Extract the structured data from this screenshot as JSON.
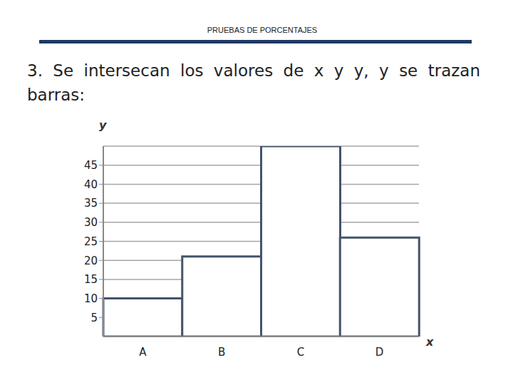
{
  "header": {
    "title": "PRUEBAS DE PORCENTAJES"
  },
  "question": "3. Se intersecan los valores de x y y, y se trazan barras:",
  "chart_data": {
    "type": "bar",
    "x_label": "x",
    "y_label": "y",
    "categories": [
      "A",
      "B",
      "C",
      "D"
    ],
    "values": [
      10,
      21,
      50,
      26
    ],
    "color": "#44546a",
    "ylim": [
      0,
      50
    ],
    "yticks": [
      5,
      10,
      15,
      20,
      25,
      30,
      35,
      40,
      45
    ],
    "grid": true
  }
}
